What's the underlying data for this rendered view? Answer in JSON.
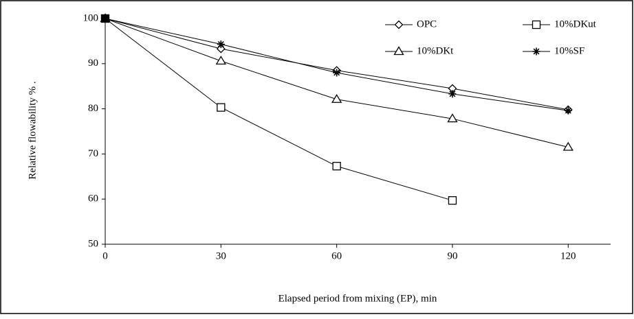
{
  "chart_data": {
    "type": "line",
    "x_label": "Elapsed period from mixing (EP), min",
    "y_label": "Relative flowability % .",
    "x": [
      0,
      30,
      60,
      90,
      120
    ],
    "xlim": [
      0,
      131
    ],
    "xticks": [
      0,
      30,
      60,
      90,
      120
    ],
    "ylim": [
      50,
      100
    ],
    "yticks": [
      50,
      60,
      70,
      80,
      90,
      100
    ],
    "legend": "top-right",
    "series": [
      {
        "name": "OPC",
        "color": "#000000",
        "marker": "diamond",
        "values": [
          100,
          93.3,
          88.5,
          84.5,
          79.8
        ]
      },
      {
        "name": "10%DKut",
        "color": "#000000",
        "marker": "square",
        "values": [
          100,
          80.3,
          67.3,
          59.7,
          null
        ]
      },
      {
        "name": "10%DKt",
        "color": "#000000",
        "marker": "triangle",
        "values": [
          100,
          90.6,
          82.1,
          77.8,
          71.5
        ]
      },
      {
        "name": "10%SF",
        "color": "#000000",
        "marker": "star",
        "values": [
          100,
          94.3,
          88,
          83.3,
          79.6
        ]
      }
    ]
  }
}
